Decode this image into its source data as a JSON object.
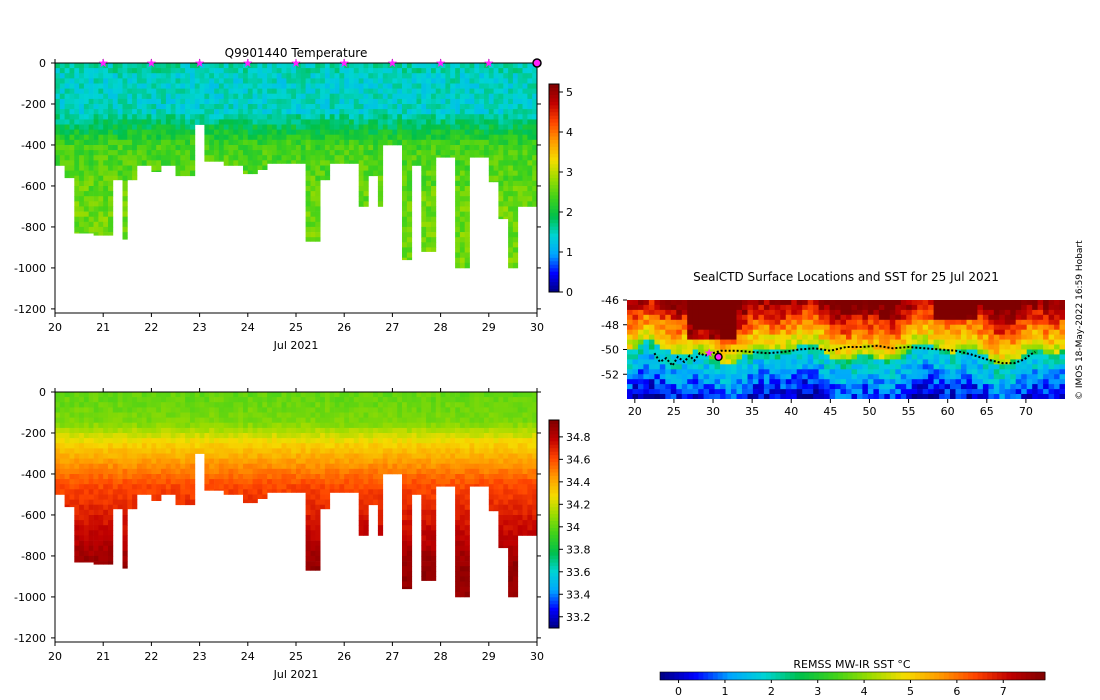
{
  "chart_data": [
    {
      "type": "heatmap",
      "name": "temperature-section",
      "title": "Q9901440  Temperature",
      "xlabel": "Jul 2021",
      "ylabel": "",
      "xlim": [
        20,
        30
      ],
      "ylim": [
        -1220,
        0
      ],
      "x_ticks": [
        20,
        21,
        22,
        23,
        24,
        25,
        26,
        27,
        28,
        29,
        30
      ],
      "y_ticks": [
        0,
        -200,
        -400,
        -600,
        -800,
        -1000,
        -1200
      ],
      "profile_markers_x": [
        21,
        22,
        23,
        24,
        25,
        26,
        27,
        28,
        29
      ],
      "current_marker_x": 30,
      "colorbar": {
        "min": 0,
        "max": 5.2,
        "ticks": [
          0,
          1,
          2,
          3,
          4,
          5
        ]
      },
      "profile_bottoms": [
        [
          20.0,
          -500
        ],
        [
          20.2,
          -560
        ],
        [
          20.4,
          -830
        ],
        [
          20.8,
          -840
        ],
        [
          21.2,
          -570
        ],
        [
          21.35,
          -860
        ],
        [
          21.5,
          -570
        ],
        [
          21.7,
          -500
        ],
        [
          22.0,
          -530
        ],
        [
          22.2,
          -500
        ],
        [
          22.5,
          -550
        ],
        [
          22.9,
          -300
        ],
        [
          23.1,
          -480
        ],
        [
          23.5,
          -500
        ],
        [
          23.9,
          -540
        ],
        [
          24.2,
          -520
        ],
        [
          24.4,
          -490
        ],
        [
          25.2,
          -870
        ],
        [
          25.45,
          -570
        ],
        [
          25.7,
          -490
        ],
        [
          26.3,
          -700
        ],
        [
          26.5,
          -550
        ],
        [
          26.65,
          -700
        ],
        [
          26.8,
          -400
        ],
        [
          27.2,
          -960
        ],
        [
          27.35,
          -500
        ],
        [
          27.6,
          -920
        ],
        [
          27.9,
          -460
        ],
        [
          28.3,
          -1000
        ],
        [
          28.6,
          -460
        ],
        [
          29.0,
          -580
        ],
        [
          29.2,
          -760
        ],
        [
          29.4,
          -1000
        ],
        [
          29.6,
          -700
        ],
        [
          30.0,
          -700
        ]
      ]
    },
    {
      "type": "heatmap",
      "name": "salinity-section",
      "title": "",
      "xlabel": "Jul 2021",
      "ylabel": "",
      "xlim": [
        20,
        30
      ],
      "ylim": [
        -1220,
        0
      ],
      "x_ticks": [
        20,
        21,
        22,
        23,
        24,
        25,
        26,
        27,
        28,
        29,
        30
      ],
      "y_ticks": [
        0,
        -200,
        -400,
        -600,
        -800,
        -1000,
        -1200
      ],
      "colorbar": {
        "min": 33.1,
        "max": 34.95,
        "ticks": [
          33.2,
          33.4,
          33.6,
          33.8,
          34,
          34.2,
          34.4,
          34.6,
          34.8
        ]
      },
      "profile_bottoms": [
        [
          20.0,
          -500
        ],
        [
          20.2,
          -560
        ],
        [
          20.4,
          -830
        ],
        [
          20.8,
          -840
        ],
        [
          21.2,
          -570
        ],
        [
          21.35,
          -860
        ],
        [
          21.5,
          -570
        ],
        [
          21.7,
          -500
        ],
        [
          22.0,
          -530
        ],
        [
          22.2,
          -500
        ],
        [
          22.5,
          -550
        ],
        [
          22.9,
          -300
        ],
        [
          23.1,
          -480
        ],
        [
          23.5,
          -500
        ],
        [
          23.9,
          -540
        ],
        [
          24.2,
          -520
        ],
        [
          24.4,
          -490
        ],
        [
          25.2,
          -870
        ],
        [
          25.45,
          -570
        ],
        [
          25.7,
          -490
        ],
        [
          26.3,
          -700
        ],
        [
          26.5,
          -550
        ],
        [
          26.65,
          -700
        ],
        [
          26.8,
          -400
        ],
        [
          27.2,
          -960
        ],
        [
          27.35,
          -500
        ],
        [
          27.6,
          -920
        ],
        [
          27.9,
          -460
        ],
        [
          28.3,
          -1000
        ],
        [
          28.6,
          -460
        ],
        [
          29.0,
          -580
        ],
        [
          29.2,
          -760
        ],
        [
          29.4,
          -1000
        ],
        [
          29.6,
          -700
        ],
        [
          30.0,
          -700
        ]
      ]
    },
    {
      "type": "heatmap",
      "name": "sst-map",
      "title": "SealCTD Surface Locations and SST for 25 Jul 2021",
      "xlabel": "",
      "ylabel": "",
      "xlim": [
        19,
        75
      ],
      "ylim": [
        -54,
        -46
      ],
      "x_ticks": [
        20,
        25,
        30,
        35,
        40,
        45,
        50,
        55,
        60,
        65,
        70
      ],
      "y_ticks": [
        -46,
        -48,
        -50,
        -52
      ],
      "track": [
        [
          22.5,
          -50.3
        ],
        [
          23.2,
          -51.0
        ],
        [
          24.0,
          -50.7
        ],
        [
          24.8,
          -51.3
        ],
        [
          25.5,
          -50.6
        ],
        [
          26.3,
          -51.0
        ],
        [
          27.0,
          -50.5
        ],
        [
          27.6,
          -50.9
        ],
        [
          28.3,
          -50.3
        ],
        [
          29.0,
          -50.5
        ],
        [
          30.0,
          -50.3
        ],
        [
          31.0,
          -50.1
        ],
        [
          33.0,
          -50.1
        ],
        [
          35.0,
          -50.2
        ],
        [
          37.0,
          -50.3
        ],
        [
          39.0,
          -50.2
        ],
        [
          41.0,
          -50.0
        ],
        [
          43.0,
          -49.9
        ],
        [
          45.0,
          -50.1
        ],
        [
          47.0,
          -49.8
        ],
        [
          49.0,
          -49.8
        ],
        [
          51.0,
          -49.7
        ],
        [
          53.0,
          -49.9
        ],
        [
          55.0,
          -49.8
        ],
        [
          57.0,
          -49.9
        ],
        [
          59.0,
          -50.0
        ],
        [
          61.0,
          -50.1
        ],
        [
          63.0,
          -50.4
        ],
        [
          65.0,
          -50.8
        ],
        [
          67.0,
          -51.1
        ],
        [
          68.5,
          -51.1
        ],
        [
          69.8,
          -50.8
        ],
        [
          70.6,
          -50.4
        ],
        [
          71.2,
          -50.2
        ]
      ],
      "profile_location": [
        29.5,
        -50.3
      ],
      "latest_location": [
        30.7,
        -50.6
      ],
      "colorbar": {
        "label": "REMSS MW-IR SST °C",
        "min": -0.4,
        "max": 7.9,
        "ticks": [
          0,
          1,
          2,
          3,
          4,
          5,
          6,
          7
        ]
      }
    }
  ],
  "credit": "© IMOS 18-May-2022 16:59 Hobart",
  "colors": {
    "scale": [
      "#00007f",
      "#0000ff",
      "#00a5ff",
      "#00d4d4",
      "#00c04b",
      "#3fd21a",
      "#9bdc00",
      "#f5dc00",
      "#ff9a00",
      "#ff4500",
      "#c00000",
      "#7f0000"
    ],
    "marker": "#ff22ff",
    "track": "#000000"
  }
}
